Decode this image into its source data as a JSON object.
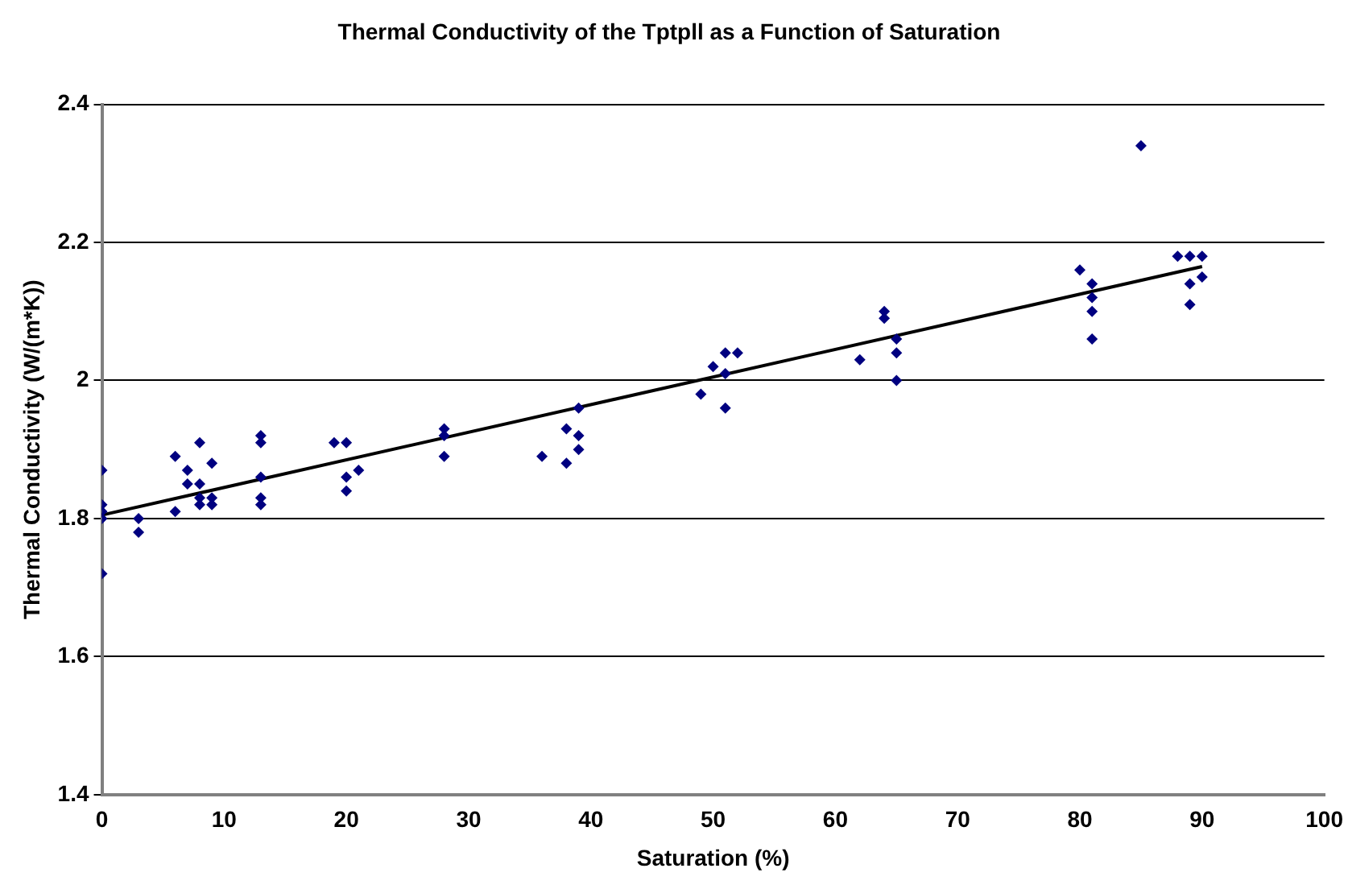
{
  "chart_data": {
    "type": "scatter",
    "title": "Thermal Conductivity of the Tptpll as a Function of Saturation",
    "xlabel": "Saturation (%)",
    "ylabel": "Thermal Conductivity (W/(m*K))",
    "xlim": [
      0,
      100
    ],
    "xticks": [
      0,
      10,
      20,
      30,
      40,
      50,
      60,
      70,
      80,
      90,
      100
    ],
    "ylim": [
      1.4,
      2.4
    ],
    "yticks": [
      {
        "value": 1.4,
        "label": "1.4"
      },
      {
        "value": 1.6,
        "label": "1.6"
      },
      {
        "value": 1.8,
        "label": "1.8"
      },
      {
        "value": 2,
        "label": "2"
      },
      {
        "value": 2.2,
        "label": "2.2"
      },
      {
        "value": 2.4,
        "label": "2.4"
      }
    ],
    "grid": "y",
    "marker": "diamond",
    "legend": false,
    "series": [
      {
        "type": "scatter",
        "color": "#000080",
        "x": [
          0,
          0,
          0,
          0,
          0,
          3,
          3,
          6,
          6,
          7,
          7,
          8,
          8,
          8,
          8,
          9,
          9,
          9,
          13,
          13,
          13,
          13,
          13,
          19,
          20,
          20,
          20,
          21,
          28,
          28,
          28,
          36,
          38,
          38,
          39,
          39,
          39,
          49,
          50,
          51,
          51,
          51,
          52,
          62,
          64,
          64,
          65,
          65,
          65,
          80,
          81,
          81,
          81,
          81,
          85,
          88,
          89,
          89,
          89,
          90,
          90
        ],
        "values": [
          1.87,
          1.82,
          1.81,
          1.8,
          1.72,
          1.8,
          1.78,
          1.89,
          1.81,
          1.87,
          1.85,
          1.91,
          1.85,
          1.83,
          1.82,
          1.88,
          1.83,
          1.82,
          1.92,
          1.91,
          1.86,
          1.83,
          1.82,
          1.91,
          1.91,
          1.86,
          1.84,
          1.87,
          1.93,
          1.92,
          1.89,
          1.89,
          1.93,
          1.88,
          1.96,
          1.92,
          1.9,
          1.98,
          2.02,
          2.04,
          2.01,
          1.96,
          2.04,
          2.03,
          2.1,
          2.09,
          2.06,
          2.04,
          2,
          2.16,
          2.14,
          2.12,
          2.1,
          2.06,
          2.34,
          2.18,
          2.18,
          2.14,
          2.11,
          2.18,
          2.15
        ]
      },
      {
        "type": "line",
        "color": "#000000",
        "marker": "none",
        "x": [
          0,
          90
        ],
        "values": [
          1.805,
          2.165
        ]
      }
    ]
  }
}
